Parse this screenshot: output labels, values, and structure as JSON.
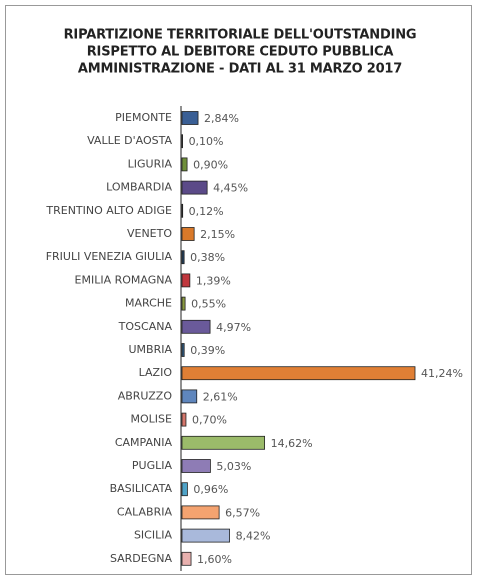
{
  "chart_data": {
    "type": "hbar",
    "title": [
      "RIPARTIZIONE TERRITORIALE DELL'OUTSTANDING",
      "RISPETTO AL DEBITORE CEDUTO PUBBLICA",
      "AMMINISTRAZIONE - DATI AL 31 MARZO 2017"
    ],
    "categories": [
      "PIEMONTE",
      "VALLE D'AOSTA",
      "LIGURIA",
      "LOMBARDIA",
      "TRENTINO ALTO ADIGE",
      "VENETO",
      "FRIULI VENEZIA GIULIA",
      "EMILIA ROMAGNA",
      "MARCHE",
      "TOSCANA",
      "UMBRIA",
      "LAZIO",
      "ABRUZZO",
      "MOLISE",
      "CAMPANIA",
      "PUGLIA",
      "BASILICATA",
      "CALABRIA",
      "SICILIA",
      "SARDEGNA"
    ],
    "values": [
      2.84,
      0.1,
      0.9,
      4.45,
      0.12,
      2.15,
      0.38,
      1.39,
      0.55,
      4.97,
      0.39,
      41.24,
      2.61,
      0.7,
      14.62,
      5.03,
      0.96,
      6.57,
      8.42,
      1.6
    ],
    "value_labels": [
      "2,84%",
      "0,10%",
      "0,90%",
      "4,45%",
      "0,12%",
      "2,15%",
      "0,38%",
      "1,39%",
      "0,55%",
      "4,97%",
      "0,39%",
      "41,24%",
      "2,61%",
      "0,70%",
      "14,62%",
      "5,03%",
      "0,96%",
      "6,57%",
      "8,42%",
      "1,60%"
    ],
    "colors": [
      "#3a5f95",
      "#2b3a55",
      "#6f8f3a",
      "#5b4a88",
      "#2b3a55",
      "#d9792a",
      "#23415f",
      "#c0373d",
      "#8a9a40",
      "#6a5a9a",
      "#2e5a80",
      "#e07f35",
      "#5f86bd",
      "#d4756a",
      "#9bbb6a",
      "#8e7cb5",
      "#4fa3c8",
      "#f4a370",
      "#a9b9db",
      "#e8b0ae"
    ]
  }
}
